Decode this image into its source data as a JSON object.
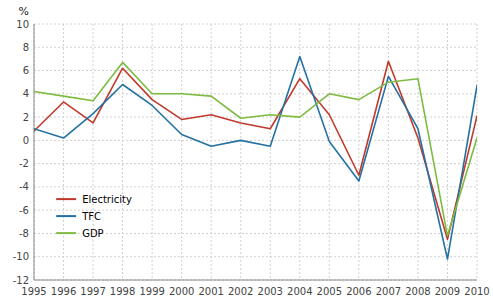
{
  "chart_data": {
    "type": "line",
    "y_label": "%",
    "x": [
      1995,
      1996,
      1997,
      1998,
      1999,
      2000,
      2001,
      2002,
      2003,
      2004,
      2005,
      2006,
      2007,
      2008,
      2009,
      2010
    ],
    "series": [
      {
        "name": "Electricity",
        "color": "#c0392b",
        "values": [
          0.8,
          3.3,
          1.5,
          6.2,
          3.5,
          1.8,
          2.2,
          1.5,
          1.0,
          5.3,
          2.2,
          -3.0,
          6.8,
          0.2,
          -8.5,
          2.1
        ]
      },
      {
        "name": "TFC",
        "color": "#2471a3",
        "values": [
          1.0,
          0.2,
          2.3,
          4.8,
          3.0,
          0.5,
          -0.5,
          0.0,
          -0.5,
          7.2,
          -0.1,
          -3.5,
          5.5,
          1.0,
          -10.2,
          4.7
        ]
      },
      {
        "name": "GDP",
        "color": "#7dbb42",
        "values": [
          4.2,
          3.8,
          3.4,
          6.7,
          4.0,
          4.0,
          3.8,
          1.9,
          2.2,
          2.0,
          4.0,
          3.5,
          5.0,
          5.3,
          -8.2,
          0.2
        ]
      }
    ],
    "xlim": [
      1995,
      2010
    ],
    "xticks": [
      1995,
      1996,
      1997,
      1998,
      1999,
      2000,
      2001,
      2002,
      2003,
      2004,
      2005,
      2006,
      2007,
      2008,
      2009,
      2010
    ],
    "ylim": [
      -12,
      10
    ],
    "yticks": [
      -12,
      -10,
      -8,
      -6,
      -4,
      -2,
      0,
      2,
      4,
      6,
      8,
      10
    ],
    "grid": true,
    "legend": "lower left"
  }
}
